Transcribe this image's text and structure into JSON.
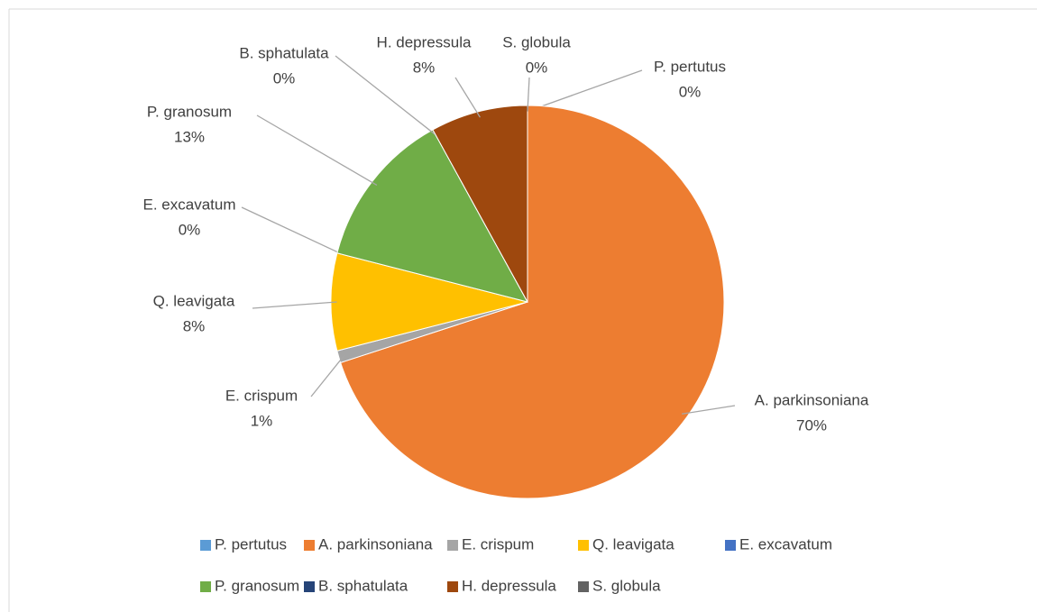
{
  "chart_data": {
    "type": "pie",
    "categories": [
      "P. pertutus",
      "A. parkinsoniana",
      "E. crispum",
      "Q. leavigata",
      "E. excavatum",
      "P. granosum",
      "B. sphatulata",
      "H. depressula",
      "S. globula"
    ],
    "values": [
      0,
      70,
      1,
      8,
      0,
      13,
      0,
      8,
      0
    ],
    "value_labels": [
      "0%",
      "70%",
      "1%",
      "8%",
      "0%",
      "13%",
      "0%",
      "8%",
      "0%"
    ],
    "colors": [
      "#5b9bd5",
      "#ed7d31",
      "#a5a5a5",
      "#ffc000",
      "#4472c4",
      "#70ad47",
      "#264478",
      "#9e480e",
      "#636363"
    ],
    "legend": "bottom"
  }
}
